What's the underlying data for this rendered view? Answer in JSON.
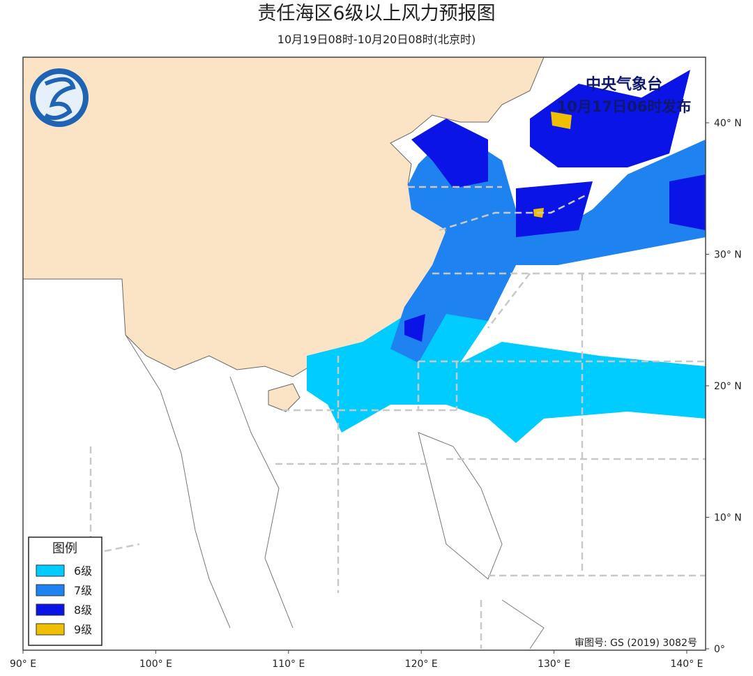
{
  "header": {
    "title": "责任海区6级以上风力预报图",
    "subtitle": "10月19日08时-10月20日08时(北京时)"
  },
  "issuer": {
    "name": "中央气象台",
    "time": "10月17日06时发布"
  },
  "legend": {
    "title": "图例",
    "items": [
      {
        "label": "6级",
        "color": "#00ccff"
      },
      {
        "label": "7级",
        "color": "#1e82f0"
      },
      {
        "label": "8级",
        "color": "#0a14e6"
      },
      {
        "label": "9级",
        "color": "#f0c000"
      }
    ]
  },
  "axes": {
    "lon_labels": [
      "90° E",
      "100° E",
      "110° E",
      "120° E",
      "130° E",
      "140° E"
    ],
    "lat_labels": [
      "0°",
      "10° N",
      "20° N",
      "30° N",
      "40° N"
    ]
  },
  "review_number": "审图号: GS (2019) 3082号"
}
